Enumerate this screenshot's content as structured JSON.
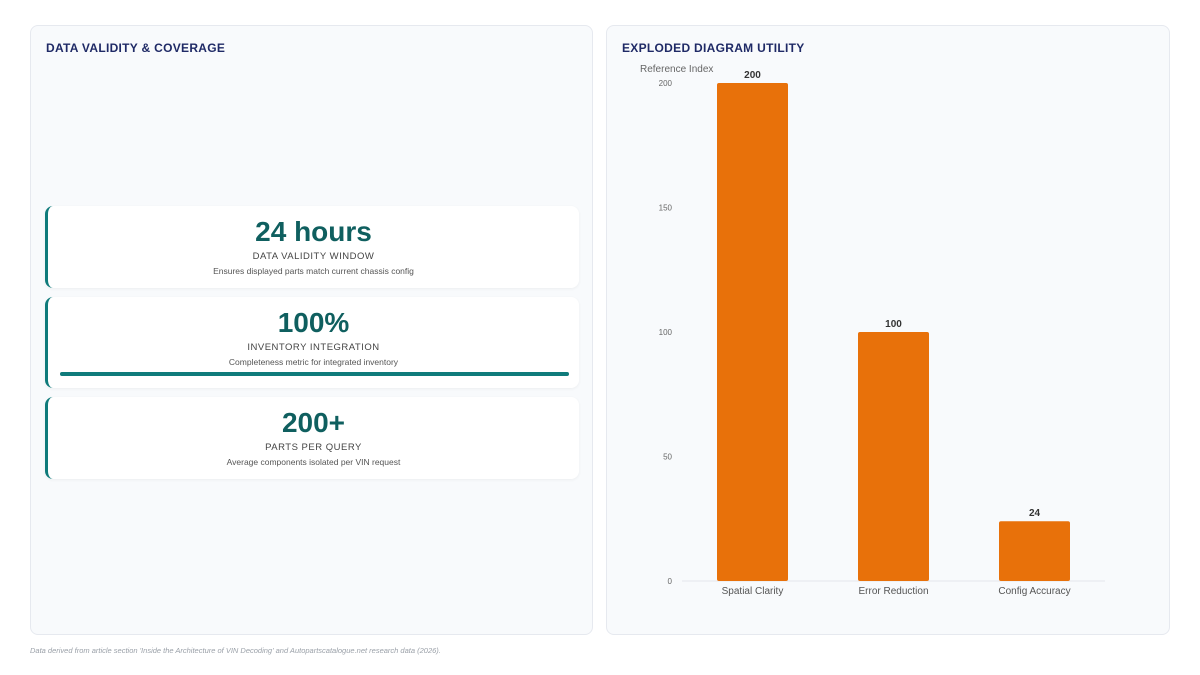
{
  "left_panel": {
    "title": "DATA VALIDITY & COVERAGE",
    "kpis": [
      {
        "value": "24 hours",
        "label": "DATA VALIDITY WINDOW",
        "description": "Ensures displayed parts match current chassis config"
      },
      {
        "value": "100%",
        "label": "INVENTORY INTEGRATION",
        "description": "Completeness metric for integrated inventory",
        "progress": 1.0
      },
      {
        "value": "200+",
        "label": "PARTS PER QUERY",
        "description": "Average components isolated per VIN request"
      }
    ]
  },
  "right_panel": {
    "title": "EXPLODED DIAGRAM UTILITY"
  },
  "chart_data": {
    "type": "bar",
    "categories": [
      "Spatial Clarity",
      "Error Reduction",
      "Config Accuracy"
    ],
    "values": [
      200,
      100,
      24
    ],
    "data_labels": [
      "200",
      "100",
      "24"
    ],
    "ylabel": "Reference Index",
    "ylim": [
      0,
      200
    ],
    "yticks": [
      0,
      50,
      100,
      150,
      200
    ],
    "grid": false,
    "bar_color": "#e8710a"
  },
  "footer": "Data derived from article section 'Inside the Architecture of VIN Decoding' and Autopartscatalogue.net research data (2026)."
}
